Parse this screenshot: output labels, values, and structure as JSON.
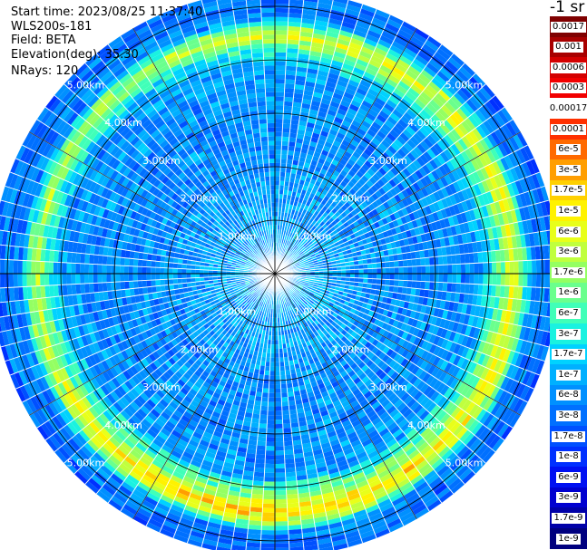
{
  "header": {
    "start_time": "Start time: 2023/08/25 11:37:40",
    "instrument": "WLS200s-181",
    "field": "Field: BETA",
    "elevation": "Elevation(deg): 35.30",
    "nrays": "NRays: 120",
    "units": "-1 sr"
  },
  "chart_data": {
    "type": "heatmap",
    "projection": "polar-ppi",
    "field": "BETA",
    "elevation_deg": 35.3,
    "n_rays": 120,
    "range_rings_km": [
      1,
      2,
      3,
      4,
      5
    ],
    "ring_labels": [
      "1.00km",
      "2.00km",
      "3.00km",
      "4.00km",
      "5.00km"
    ],
    "max_range_km": 5.3,
    "colorbar": {
      "units": "-1 sr",
      "scale": "log",
      "labels": [
        "0.0017",
        "0.001",
        "0.0006",
        "0.0003",
        "0.00017",
        "0.0001",
        "6e-5",
        "3e-5",
        "1.7e-5",
        "1e-5",
        "6e-6",
        "3e-6",
        "1.7e-6",
        "1e-6",
        "6e-7",
        "3e-7",
        "1.7e-7",
        "1e-7",
        "6e-8",
        "3e-8",
        "1.7e-8",
        "1e-8",
        "6e-9",
        "3e-9",
        "1.7e-9",
        "1e-9"
      ],
      "colors": [
        "#7f0000",
        "#a80000",
        "#d40000",
        "#f20000",
        "#ffffff",
        "#ff3000",
        "#ff6a00",
        "#ff9e00",
        "#ffd000",
        "#fff200",
        "#e8ff1a",
        "#c0ff3e",
        "#94ff62",
        "#6aff8d",
        "#40ffb8",
        "#1af2e0",
        "#00d2ff",
        "#00b0ff",
        "#0090ff",
        "#0070ff",
        "#0050ff",
        "#0030ff",
        "#0010f2",
        "#0000d0",
        "#0000a8",
        "#00007f"
      ]
    },
    "radial_profile": [
      {
        "range_km": 0.0,
        "log10_beta": -7.6
      },
      {
        "range_km": 0.5,
        "log10_beta": -7.0
      },
      {
        "range_km": 1.0,
        "log10_beta": -7.1
      },
      {
        "range_km": 2.0,
        "log10_beta": -7.25
      },
      {
        "range_km": 3.0,
        "log10_beta": -7.3
      },
      {
        "range_km": 3.8,
        "log10_beta": -7.2
      },
      {
        "range_km": 4.2,
        "log10_beta": -6.2
      },
      {
        "range_km": 4.45,
        "log10_beta": -5.2
      },
      {
        "range_km": 4.6,
        "log10_beta": -5.8
      },
      {
        "range_km": 4.8,
        "log10_beta": -7.3
      },
      {
        "range_km": 5.3,
        "log10_beta": -7.6
      }
    ]
  }
}
